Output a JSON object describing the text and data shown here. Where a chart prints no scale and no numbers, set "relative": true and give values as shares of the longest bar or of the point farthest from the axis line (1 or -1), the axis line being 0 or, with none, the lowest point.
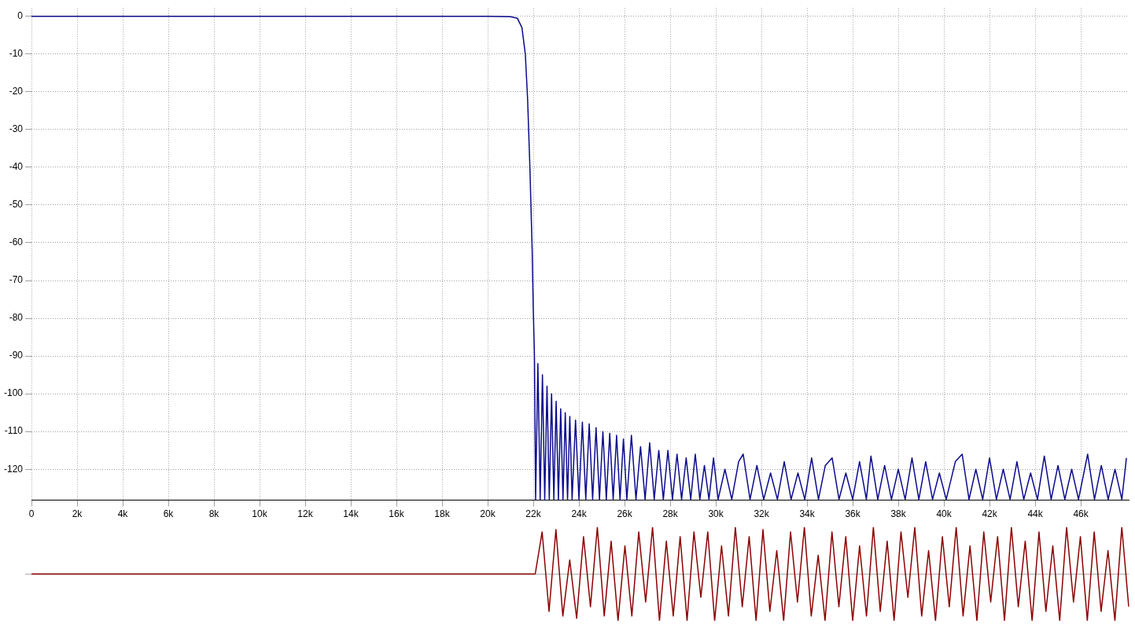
{
  "chart_data": [
    {
      "type": "line",
      "xlim": [
        0,
        48100
      ],
      "ylim": [
        -128.2,
        2.2
      ],
      "xticks": [
        0,
        {
          "value": 2000,
          "label": "2k"
        },
        {
          "value": 4000,
          "label": "4k"
        },
        {
          "value": 6000,
          "label": "6k"
        },
        {
          "value": 8000,
          "label": "8k"
        },
        {
          "value": 10000,
          "label": "10k"
        },
        {
          "value": 12000,
          "label": "12k"
        },
        {
          "value": 14000,
          "label": "14k"
        },
        {
          "value": 16000,
          "label": "16k"
        },
        {
          "value": 18000,
          "label": "18k"
        },
        {
          "value": 20000,
          "label": "20k"
        },
        {
          "value": 22000,
          "label": "22k"
        },
        {
          "value": 24000,
          "label": "24k"
        },
        {
          "value": 26000,
          "label": "26k"
        },
        {
          "value": 28000,
          "label": "28k"
        },
        {
          "value": 30000,
          "label": "30k"
        },
        {
          "value": 32000,
          "label": "32k"
        },
        {
          "value": 34000,
          "label": "34k"
        },
        {
          "value": 36000,
          "label": "36k"
        },
        {
          "value": 38000,
          "label": "38k"
        },
        {
          "value": 40000,
          "label": "40k"
        },
        {
          "value": 42000,
          "label": "42k"
        },
        {
          "value": 44000,
          "label": "44k"
        },
        {
          "value": 46000,
          "label": "46k"
        }
      ],
      "yticks": [
        0,
        -10,
        -20,
        -30,
        -40,
        -50,
        -60,
        -70,
        -80,
        -90,
        -100,
        -110,
        -120
      ],
      "grid": true,
      "legend": false,
      "series": [
        {
          "color": "#0a0a8c",
          "x": [
            0,
            10000,
            20000,
            21000,
            21300,
            21500,
            21650,
            21750,
            21850,
            21950,
            22000,
            22050,
            22100,
            22200,
            22300,
            22400,
            22500,
            22600,
            22700,
            22800,
            22900,
            23000,
            23100,
            23200,
            23300,
            23400,
            23500,
            23600,
            23700,
            23850,
            24000,
            24150,
            24300,
            24450,
            24600,
            24750,
            24900,
            25050,
            25200,
            25350,
            25500,
            25650,
            25800,
            25950,
            26100,
            26300,
            26500,
            26700,
            26900,
            27100,
            27300,
            27500,
            27700,
            27900,
            28100,
            28300,
            28500,
            28700,
            28900,
            29100,
            29300,
            29500,
            29700,
            29900,
            30100,
            30400,
            30700,
            31000,
            31200,
            31500,
            31800,
            32100,
            32400,
            32700,
            33000,
            33300,
            33600,
            33900,
            34200,
            34500,
            34800,
            35100,
            35400,
            35700,
            36000,
            36300,
            36600,
            36800,
            37100,
            37400,
            37700,
            38000,
            38300,
            38600,
            38900,
            39200,
            39500,
            39800,
            40100,
            40500,
            40800,
            41100,
            41400,
            41700,
            42000,
            42300,
            42600,
            42900,
            43200,
            43500,
            43800,
            44100,
            44400,
            44700,
            45000,
            45300,
            45600,
            45900,
            46300,
            46600,
            46900,
            47200,
            47500,
            47800,
            48000
          ],
          "values": [
            0,
            0,
            0,
            -0.1,
            -0.5,
            -3,
            -10,
            -22,
            -40,
            -62,
            -78,
            -90,
            -128,
            -92,
            -128,
            -95,
            -128,
            -98,
            -128,
            -100,
            -128,
            -102,
            -128,
            -104,
            -128,
            -105,
            -128,
            -106,
            -128,
            -107,
            -128,
            -107.5,
            -128,
            -108,
            -128,
            -109,
            -128,
            -110,
            -128,
            -110.5,
            -128,
            -111,
            -128,
            -112,
            -128,
            -111,
            -128,
            -114,
            -128,
            -113,
            -128,
            -115,
            -128,
            -115,
            -128,
            -116,
            -128,
            -117,
            -128,
            -116,
            -128,
            -119,
            -128,
            -117,
            -128,
            -120,
            -128,
            -118,
            -116,
            -128,
            -119,
            -128,
            -121,
            -128,
            -118,
            -128,
            -121,
            -128,
            -117,
            -128,
            -119,
            -117,
            -128,
            -121,
            -128,
            -118,
            -128,
            -116.5,
            -128,
            -119,
            -128,
            -120,
            -128,
            -117,
            -128,
            -118,
            -128,
            -121,
            -128,
            -118,
            -116,
            -128,
            -120,
            -128,
            -117,
            -128,
            -120,
            -128,
            -118,
            -128,
            -121,
            -128,
            -116.5,
            -128,
            -119,
            -128,
            -120,
            -128,
            -116,
            -128,
            -119,
            -128,
            -120,
            -128,
            -117
          ]
        }
      ]
    },
    {
      "type": "line",
      "relative": true,
      "legend": false,
      "categories": [
        null,
        null,
        null,
        null,
        null,
        null,
        null,
        null,
        null,
        null,
        null,
        null,
        null,
        null,
        null,
        null,
        null,
        null,
        null,
        null,
        null,
        null,
        null,
        null,
        null,
        null,
        null,
        null,
        null,
        null,
        null,
        null,
        null,
        null,
        null,
        null,
        null,
        null,
        null,
        null,
        null,
        null,
        null,
        null,
        null,
        null,
        null,
        null,
        null,
        null,
        null,
        null,
        null,
        null,
        null,
        null,
        null,
        null,
        null,
        null,
        null,
        null,
        null,
        null,
        null,
        null,
        null,
        null,
        null,
        null,
        null,
        null,
        null,
        null,
        null,
        null,
        null,
        null,
        null,
        null,
        null,
        null,
        null,
        null,
        null,
        null,
        null,
        null,
        null,
        null,
        null,
        null,
        null,
        null,
        null,
        null,
        null,
        null,
        null,
        null,
        null,
        null,
        null,
        null,
        null,
        null,
        null,
        null,
        null,
        null,
        null,
        null,
        null,
        null,
        null,
        null,
        null,
        null,
        null,
        null,
        null,
        null,
        null,
        null,
        null,
        null,
        null,
        null,
        null,
        null,
        null,
        null,
        null,
        null,
        null,
        null,
        null,
        null,
        null,
        null,
        null,
        null,
        null,
        null,
        null,
        null,
        null,
        null,
        null,
        null,
        null,
        null,
        null,
        null,
        null,
        null,
        null,
        null,
        null,
        null
      ],
      "series": [
        {
          "color": "#8b0000",
          "values": [
            0,
            0,
            0,
            0,
            0,
            0,
            0,
            0,
            0,
            0,
            0,
            0,
            0,
            0,
            0,
            0,
            0,
            0,
            0,
            0,
            0,
            0,
            0,
            0,
            0,
            0,
            0,
            0,
            0,
            0,
            0,
            0,
            0,
            0,
            0,
            0,
            0,
            0,
            0,
            0,
            0,
            0,
            0,
            0,
            0,
            0,
            0,
            0,
            0,
            0,
            0,
            0,
            0,
            0,
            0,
            0,
            0,
            0,
            0,
            0,
            0,
            0,
            0,
            0,
            0,
            0,
            0,
            0,
            0,
            0,
            0,
            0,
            0,
            0,
            0.9,
            -0.8,
            0.95,
            -0.9,
            0.3,
            -0.95,
            0.8,
            -0.7,
            1,
            -0.9,
            0.7,
            -1,
            0.6,
            -0.9,
            0.9,
            -0.6,
            1,
            -1,
            0.7,
            -0.9,
            0.8,
            -1,
            0.9,
            -0.5,
            0.9,
            -1,
            0.6,
            -0.9,
            1,
            -0.7,
            0.8,
            -1,
            0.95,
            -0.8,
            0.5,
            -1,
            0.9,
            -0.6,
            1,
            -0.9,
            0.4,
            -1,
            0.9,
            -0.7,
            0.8,
            -1,
            0.6,
            -0.9,
            1,
            -0.8,
            0.7,
            -1,
            0.9,
            -0.5,
            1,
            -0.9,
            0.5,
            -1,
            0.8,
            -0.7,
            1,
            -0.9,
            0.6,
            -1,
            0.9,
            -0.6,
            0.8,
            -1,
            1,
            -0.7,
            0.7,
            -1,
            0.9,
            -0.8,
            0.6,
            -1,
            1,
            -0.6,
            0.8,
            -1,
            0.9,
            -0.8,
            0.5,
            -1,
            1,
            -0.7
          ]
        }
      ]
    }
  ]
}
